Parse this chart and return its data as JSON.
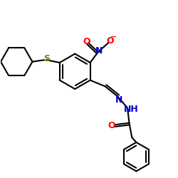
{
  "bg_color": "#ffffff",
  "atom_colors": {
    "C": "#000000",
    "N": "#0000cd",
    "O": "#ff0000",
    "S": "#808000",
    "H": "#000000"
  },
  "bond_color": "#000000",
  "bond_width": 1.5,
  "figsize": [
    2.5,
    2.5
  ],
  "dpi": 100
}
